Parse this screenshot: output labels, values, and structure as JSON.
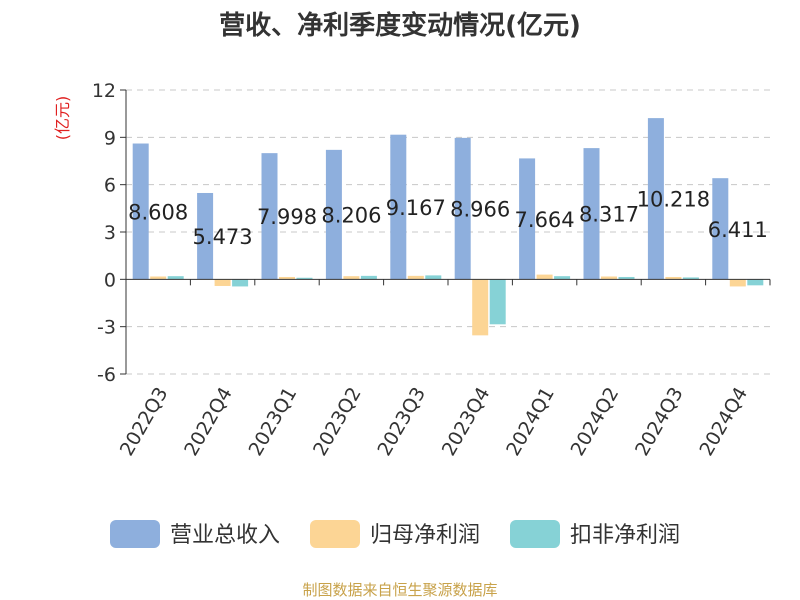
{
  "chart_data": {
    "type": "bar",
    "title": "营收、净利季度变动情况(亿元)",
    "ylabel": "(亿元)",
    "ylim": [
      -6,
      12
    ],
    "yticks": [
      12,
      9,
      6,
      3,
      0,
      -3,
      -6
    ],
    "grid": true,
    "legend_position": "bottom",
    "categories": [
      "2022Q3",
      "2022Q4",
      "2023Q1",
      "2023Q2",
      "2023Q3",
      "2023Q4",
      "2024Q1",
      "2024Q2",
      "2024Q3",
      "2024Q4"
    ],
    "series": [
      {
        "name": "营业总收入",
        "color": "#8eafdd",
        "values": [
          8.608,
          5.473,
          7.998,
          8.206,
          9.167,
          8.966,
          7.664,
          8.317,
          10.218,
          6.411
        ],
        "labels": [
          "8.608",
          "5.473",
          "7.998",
          "8.206",
          "9.167",
          "8.966",
          "7.664",
          "8.317",
          "10.218",
          "6.411"
        ]
      },
      {
        "name": "归母净利润",
        "color": "#fcd595",
        "values": [
          0.18,
          -0.42,
          0.15,
          0.2,
          0.22,
          -3.55,
          0.3,
          0.18,
          0.15,
          -0.45
        ]
      },
      {
        "name": "扣非净利润",
        "color": "#86d2d6",
        "values": [
          0.2,
          -0.45,
          0.1,
          0.22,
          0.25,
          -2.85,
          0.2,
          0.15,
          0.12,
          -0.38
        ]
      }
    ],
    "source": "制图数据来自恒生聚源数据库"
  }
}
